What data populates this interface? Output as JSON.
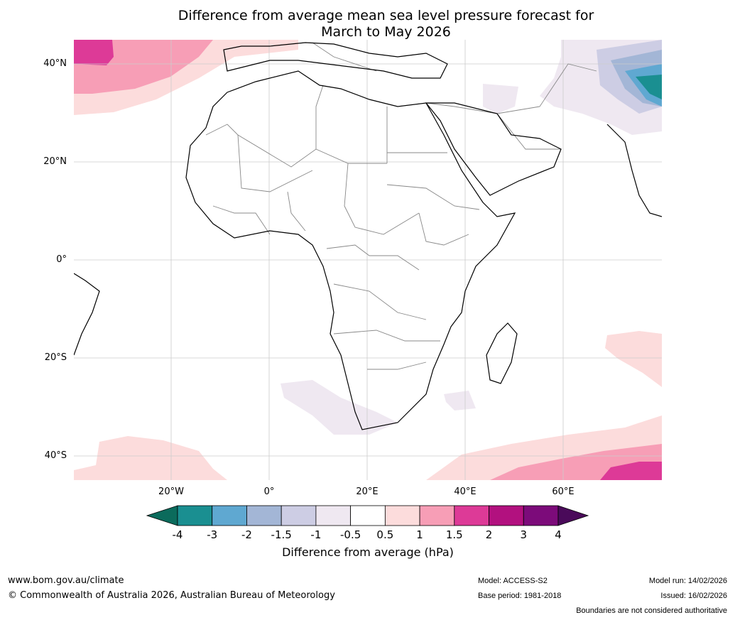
{
  "title": {
    "line1": "Difference from average mean sea level pressure forecast for",
    "line2": "March to May 2026"
  },
  "map": {
    "lat_labels": [
      "40°N",
      "20°N",
      "0°",
      "20°S",
      "40°S"
    ],
    "lon_labels": [
      "20°W",
      "0°",
      "20°E",
      "40°E",
      "60°E"
    ]
  },
  "colorbar": {
    "label": "Difference from average (hPa)",
    "ticks": [
      "-4",
      "-3",
      "-2",
      "-1.5",
      "-1",
      "-0.5",
      "0.5",
      "1",
      "1.5",
      "2",
      "3",
      "4"
    ],
    "colors": [
      "#1a8f91",
      "#5fa8d1",
      "#a3b6d6",
      "#cdcde4",
      "#efe8f1",
      "#ffffff",
      "#fcdcdc",
      "#f79eb6",
      "#dd3a97",
      "#b2117f",
      "#7c0b7a"
    ],
    "low_extend_color": "#0b6b5c",
    "high_extend_color": "#4a0a5a"
  },
  "footer": {
    "url": "www.bom.gov.au/climate",
    "copyright": "© Commonwealth of Australia 2026, Australian Bureau of Meteorology",
    "model": "Model: ACCESS-S2",
    "base_period": "Base period: 1981-2018",
    "model_run": "Model run: 14/02/2026",
    "issued": "Issued: 16/02/2026",
    "disclaimer": "Boundaries are not considered authoritative"
  }
}
